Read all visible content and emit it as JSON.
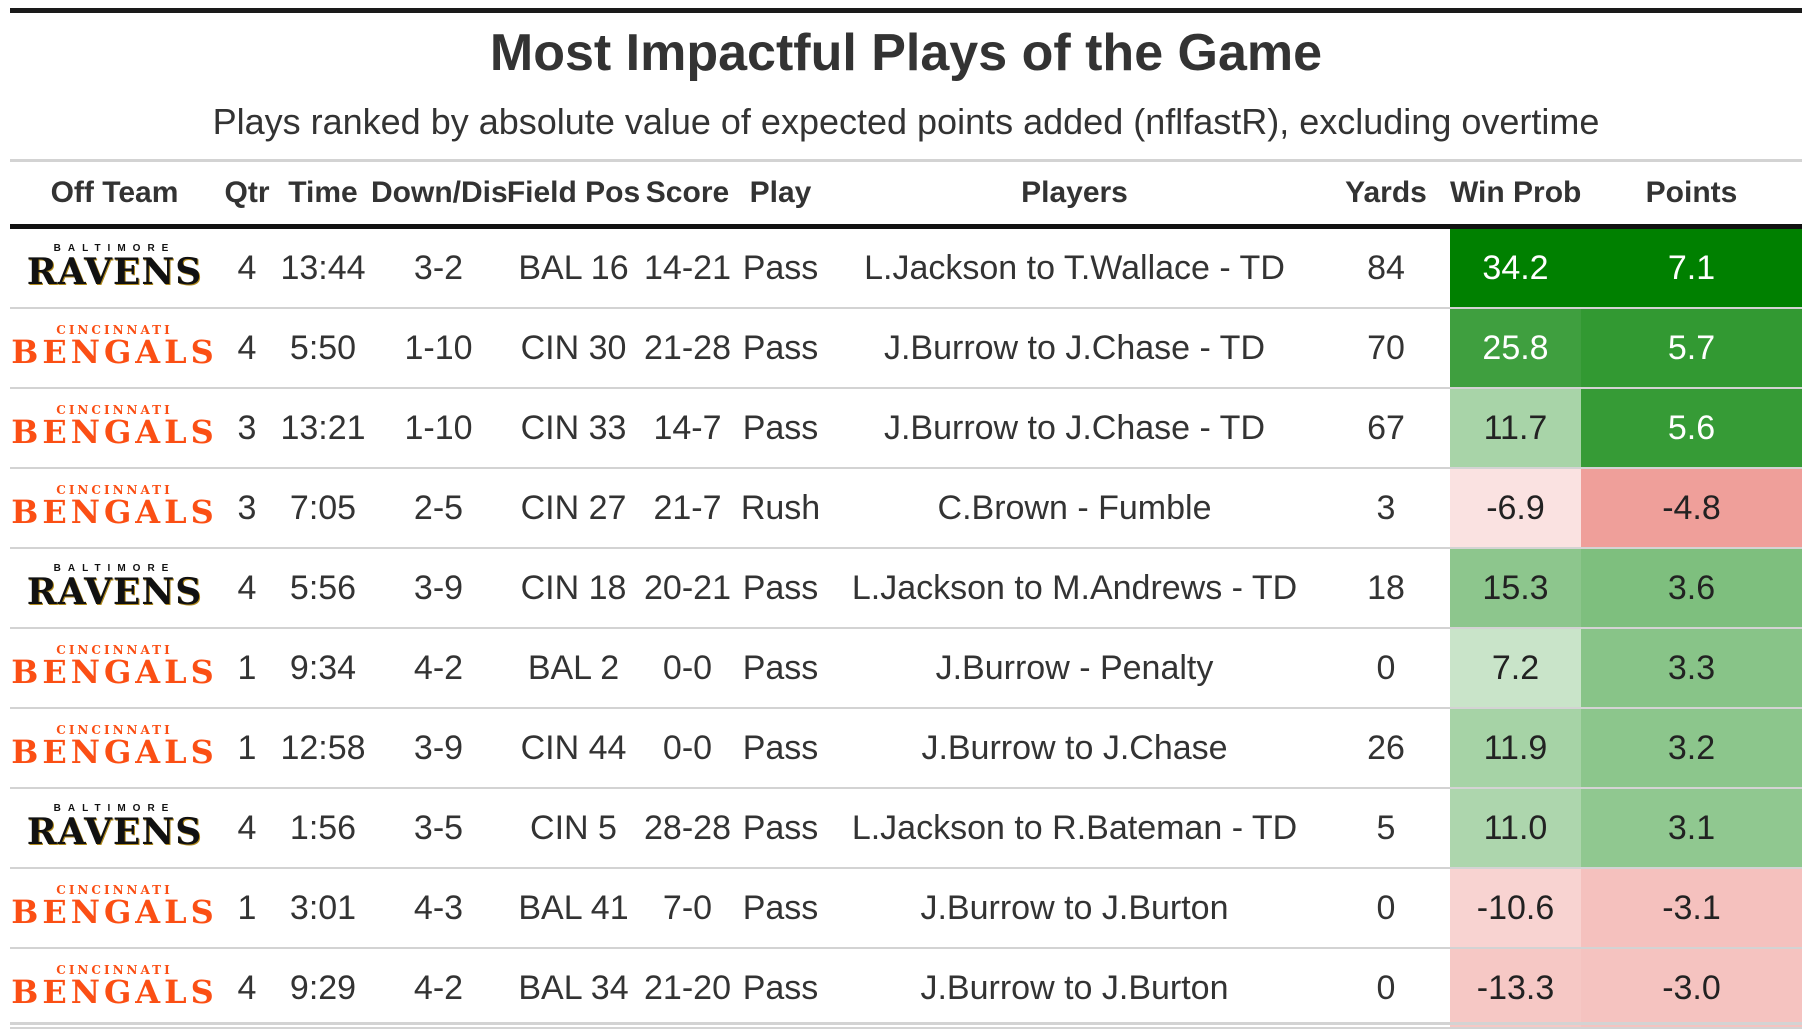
{
  "chart_data": {
    "type": "table",
    "title": "Most Impactful Plays of the Game",
    "subtitle": "Plays ranked by absolute value of expected points added (nflfastR), excluding overtime",
    "columns": [
      "Off Team",
      "Qtr",
      "Time",
      "Down/Dis",
      "Field Pos",
      "Score",
      "Play",
      "Players",
      "Yards",
      "Win Prob",
      "Points"
    ],
    "rows": [
      {
        "team": "Ravens",
        "team_city": "BALTIMORE",
        "team_name": "RAVENS",
        "qtr": "4",
        "time": "13:44",
        "down_dis": "3-2",
        "field_pos": "BAL 16",
        "score": "14-21",
        "play": "Pass",
        "players": "L.Jackson to T.Wallace - TD",
        "yards": "84",
        "win_prob": "34.2",
        "points": "7.1"
      },
      {
        "team": "Bengals",
        "team_city": "CINCINNATI",
        "team_name": "BENGALS",
        "qtr": "4",
        "time": "5:50",
        "down_dis": "1-10",
        "field_pos": "CIN 30",
        "score": "21-28",
        "play": "Pass",
        "players": "J.Burrow to J.Chase - TD",
        "yards": "70",
        "win_prob": "25.8",
        "points": "5.7"
      },
      {
        "team": "Bengals",
        "team_city": "CINCINNATI",
        "team_name": "BENGALS",
        "qtr": "3",
        "time": "13:21",
        "down_dis": "1-10",
        "field_pos": "CIN 33",
        "score": "14-7",
        "play": "Pass",
        "players": "J.Burrow to J.Chase - TD",
        "yards": "67",
        "win_prob": "11.7",
        "points": "5.6"
      },
      {
        "team": "Bengals",
        "team_city": "CINCINNATI",
        "team_name": "BENGALS",
        "qtr": "3",
        "time": "7:05",
        "down_dis": "2-5",
        "field_pos": "CIN 27",
        "score": "21-7",
        "play": "Rush",
        "players": "C.Brown - Fumble",
        "yards": "3",
        "win_prob": "-6.9",
        "points": "-4.8"
      },
      {
        "team": "Ravens",
        "team_city": "BALTIMORE",
        "team_name": "RAVENS",
        "qtr": "4",
        "time": "5:56",
        "down_dis": "3-9",
        "field_pos": "CIN 18",
        "score": "20-21",
        "play": "Pass",
        "players": "L.Jackson to M.Andrews - TD",
        "yards": "18",
        "win_prob": "15.3",
        "points": "3.6"
      },
      {
        "team": "Bengals",
        "team_city": "CINCINNATI",
        "team_name": "BENGALS",
        "qtr": "1",
        "time": "9:34",
        "down_dis": "4-2",
        "field_pos": "BAL 2",
        "score": "0-0",
        "play": "Pass",
        "players": "J.Burrow - Penalty",
        "yards": "0",
        "win_prob": "7.2",
        "points": "3.3"
      },
      {
        "team": "Bengals",
        "team_city": "CINCINNATI",
        "team_name": "BENGALS",
        "qtr": "1",
        "time": "12:58",
        "down_dis": "3-9",
        "field_pos": "CIN 44",
        "score": "0-0",
        "play": "Pass",
        "players": "J.Burrow to J.Chase",
        "yards": "26",
        "win_prob": "11.9",
        "points": "3.2"
      },
      {
        "team": "Ravens",
        "team_city": "BALTIMORE",
        "team_name": "RAVENS",
        "qtr": "4",
        "time": "1:56",
        "down_dis": "3-5",
        "field_pos": "CIN 5",
        "score": "28-28",
        "play": "Pass",
        "players": "L.Jackson to R.Bateman - TD",
        "yards": "5",
        "win_prob": "11.0",
        "points": "3.1"
      },
      {
        "team": "Bengals",
        "team_city": "CINCINNATI",
        "team_name": "BENGALS",
        "qtr": "1",
        "time": "3:01",
        "down_dis": "4-3",
        "field_pos": "BAL 41",
        "score": "7-0",
        "play": "Pass",
        "players": "J.Burrow to J.Burton",
        "yards": "0",
        "win_prob": "-10.6",
        "points": "-3.1"
      },
      {
        "team": "Bengals",
        "team_city": "CINCINNATI",
        "team_name": "BENGALS",
        "qtr": "4",
        "time": "9:29",
        "down_dis": "4-2",
        "field_pos": "BAL 34",
        "score": "21-20",
        "play": "Pass",
        "players": "J.Burrow to J.Burton",
        "yards": "0",
        "win_prob": "-13.3",
        "points": "-3.0"
      }
    ],
    "color_scale": {
      "columns": [
        "Win Prob",
        "Points"
      ],
      "positive": "#008000",
      "negative": "#e8716a",
      "neutral": "#ffffff"
    }
  }
}
